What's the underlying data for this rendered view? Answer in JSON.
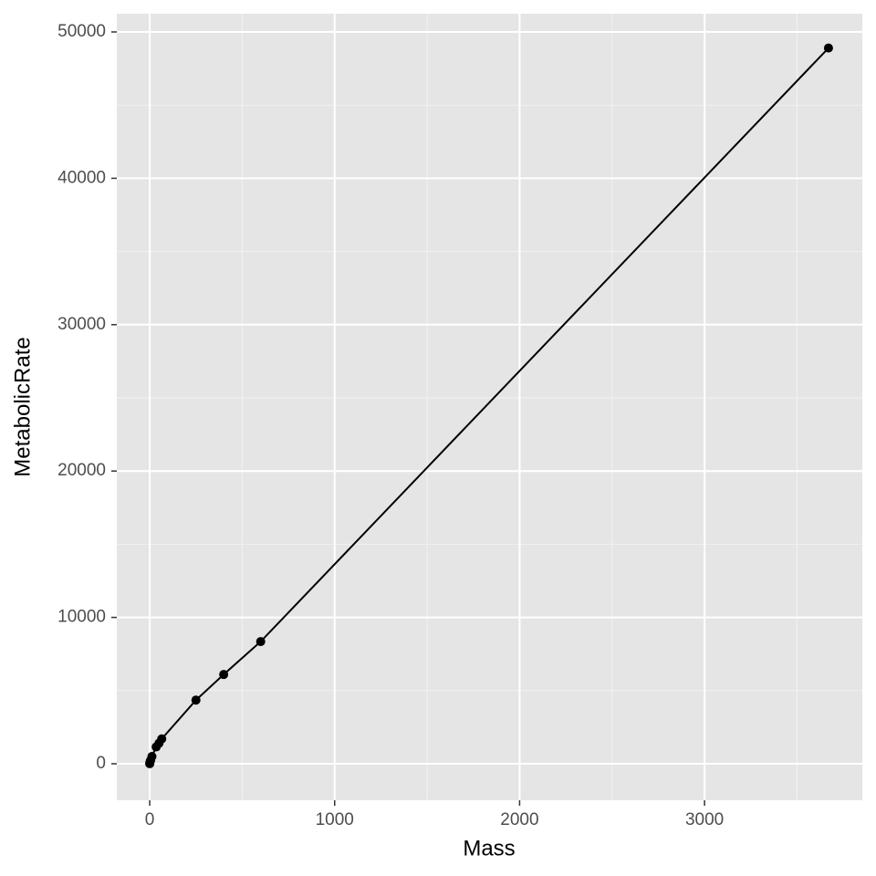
{
  "chart_data": {
    "type": "line",
    "x_label": "Mass",
    "y_label": "MetabolicRate",
    "x": [
      0.02,
      0.3,
      2,
      5,
      12,
      35,
      50,
      65,
      250,
      400,
      600,
      3670
    ],
    "series": [
      {
        "color": "#000000",
        "values": [
          5,
          30,
          150,
          250,
          500,
          1150,
          1400,
          1700,
          4350,
          6100,
          8350,
          48900
        ]
      }
    ],
    "xlim": [
      -178,
      3853
    ],
    "xticks": [
      0,
      1000,
      2000,
      3000
    ],
    "x_minor_ticks": [
      500,
      1500,
      2500,
      3500
    ],
    "ylim": [
      -2494,
      51247
    ],
    "yticks": [
      0,
      10000,
      20000,
      30000,
      40000,
      50000
    ],
    "y_minor_ticks": [
      5000,
      15000,
      25000,
      35000,
      45000
    ],
    "grid": true,
    "markers": true
  }
}
